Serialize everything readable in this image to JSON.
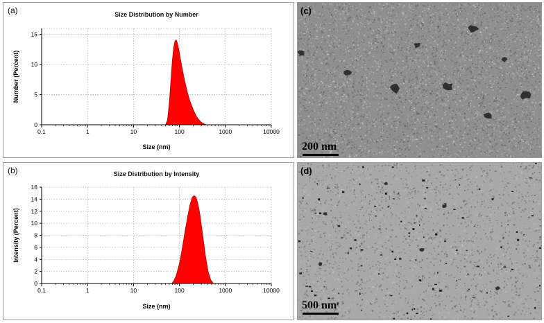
{
  "panels": {
    "a": {
      "label": "(a)"
    },
    "b": {
      "label": "(b)"
    },
    "c": {
      "label": "(c)",
      "scalebar": "200 nm"
    },
    "d": {
      "label": "(d)",
      "scalebar": "500 nm"
    }
  },
  "chart_data": [
    {
      "type": "area",
      "title": "Size Distribution by Number",
      "xlabel": "Size (nm)",
      "ylabel": "Number (Percent)",
      "xscale": "log",
      "xlim": [
        0.1,
        10000
      ],
      "ylim": [
        0,
        16
      ],
      "xticks": [
        "0.1",
        "1",
        "10",
        "100",
        "1000",
        "10000"
      ],
      "yticks": [
        "0",
        "5",
        "10",
        "15"
      ],
      "grid": true,
      "color": "#ff0000",
      "series": [
        {
          "x": [
            50,
            55,
            60,
            65,
            70,
            75,
            80,
            85,
            90,
            95,
            100,
            110,
            120,
            130,
            150,
            170,
            200,
            230,
            260,
            300,
            350,
            400
          ],
          "y": [
            0,
            0.8,
            3.5,
            7.2,
            10.6,
            12.9,
            13.9,
            14.1,
            13.6,
            12.8,
            11.9,
            10.1,
            8.6,
            7.3,
            5.3,
            3.9,
            2.5,
            1.5,
            0.9,
            0.4,
            0.1,
            0
          ]
        }
      ]
    },
    {
      "type": "area",
      "title": "Size Distribution by Intensity",
      "xlabel": "Size (nm)",
      "ylabel": "Intensity (Percent)",
      "xscale": "log",
      "xlim": [
        0.1,
        10000
      ],
      "ylim": [
        0,
        16
      ],
      "xticks": [
        "0.1",
        "1",
        "10",
        "100",
        "1000",
        "10000"
      ],
      "yticks": [
        "0",
        "2",
        "4",
        "6",
        "8",
        "10",
        "12",
        "14",
        "16"
      ],
      "grid": true,
      "color": "#ff0000",
      "series": [
        {
          "x": [
            68,
            75,
            85,
            100,
            115,
            130,
            150,
            170,
            190,
            210,
            230,
            250,
            280,
            320,
            370,
            420,
            480,
            550
          ],
          "y": [
            0,
            0.4,
            1.3,
            3.3,
            5.8,
            8.3,
            11.0,
            13.1,
            14.3,
            14.6,
            14.3,
            13.4,
            11.4,
            8.1,
            4.5,
            2.0,
            0.6,
            0
          ]
        }
      ]
    }
  ]
}
